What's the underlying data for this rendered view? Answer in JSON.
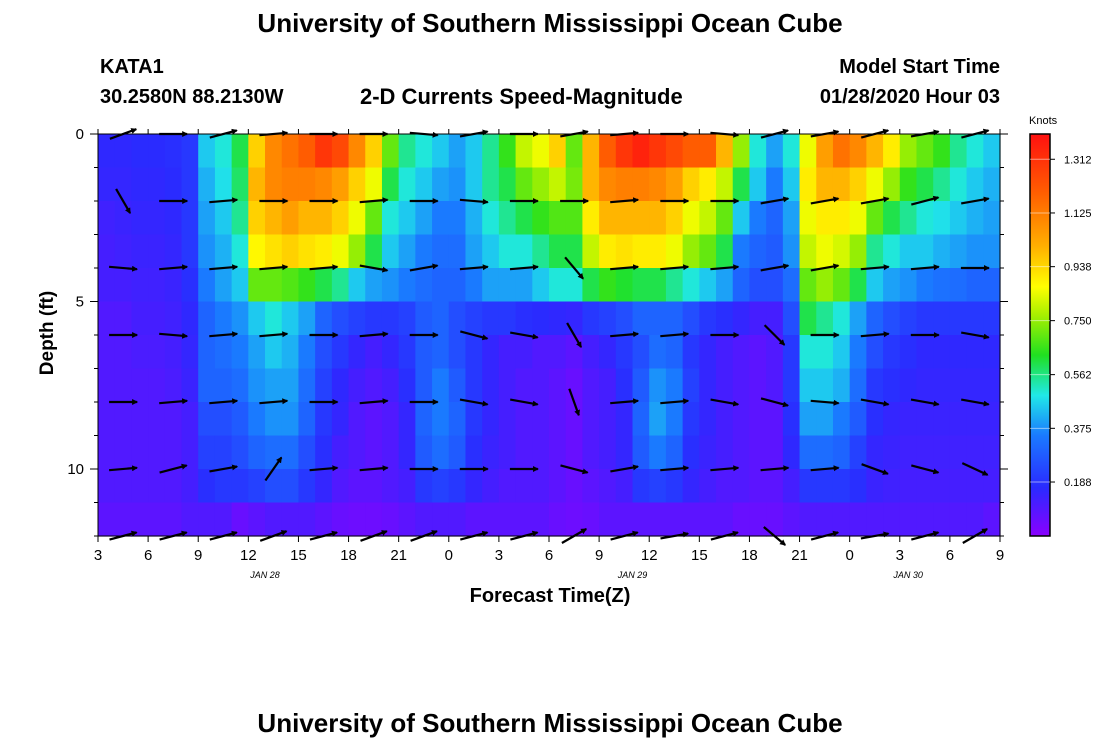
{
  "page": {
    "title_top": "University of Southern Mississippi Ocean Cube",
    "title_bottom": "University of Southern Mississippi Ocean Cube",
    "station": "KATA1",
    "location": "30.2580N 88.2130W",
    "subtitle": "2-D Currents Speed-Magnitude",
    "model_start_label": "Model Start Time",
    "model_start_value": "01/28/2020 Hour 03"
  },
  "chart_data": {
    "type": "heatmap",
    "title": "2-D Currents Speed-Magnitude",
    "xlabel": "Forecast Time(Z)",
    "ylabel": "Depth (ft)",
    "x_ticks": [
      "3",
      "6",
      "9",
      "12",
      "15",
      "18",
      "21",
      "0",
      "3",
      "6",
      "9",
      "12",
      "15",
      "18",
      "21",
      "0",
      "3",
      "6",
      "9"
    ],
    "date_labels": [
      {
        "label": "JAN 28",
        "hour_offset": 10
      },
      {
        "label": "JAN 29",
        "hour_offset": 32
      },
      {
        "label": "JAN 30",
        "hour_offset": 48.5
      }
    ],
    "x_range_hours": [
      0,
      54
    ],
    "y_ticks": [
      "0",
      "5",
      "10"
    ],
    "y_range_ft": [
      0,
      12
    ],
    "colorbar": {
      "unit": "Knots",
      "ticks": [
        "1.312",
        "1.125",
        "0.938",
        "0.750",
        "0.562",
        "0.375",
        "0.188"
      ],
      "range": [
        0,
        1.4
      ]
    },
    "column_hours": [
      0,
      1,
      2,
      3,
      4,
      5,
      6,
      7,
      8,
      9,
      10,
      11,
      12,
      13,
      14,
      15,
      16,
      17,
      18,
      19,
      20,
      21,
      22,
      23,
      24,
      25,
      26,
      27,
      28,
      29,
      30,
      31,
      32,
      33,
      34,
      35,
      36,
      37,
      38,
      39,
      40,
      41,
      42,
      43,
      44,
      45,
      46,
      47,
      48,
      49,
      50,
      51,
      52,
      53
    ],
    "depth_levels_ft": [
      0.5,
      1.5,
      2.5,
      3.5,
      4.5,
      5.5,
      6.5,
      7.5,
      8.5,
      9.5,
      10.5,
      11.5
    ],
    "speed_knots_by_depth": [
      [
        0.16,
        0.16,
        0.17,
        0.17,
        0.18,
        0.2,
        0.45,
        0.5,
        0.6,
        0.95,
        1.1,
        1.15,
        1.2,
        1.3,
        1.25,
        1.1,
        0.95,
        0.7,
        0.55,
        0.5,
        0.45,
        0.4,
        0.45,
        0.55,
        0.65,
        0.8,
        0.85,
        0.95,
        0.7,
        1.0,
        1.2,
        1.3,
        1.35,
        1.3,
        1.25,
        1.2,
        1.2,
        1.0,
        0.75,
        0.5,
        0.4,
        0.5,
        0.85,
        1.05,
        1.15,
        1.1,
        1.0,
        0.9,
        0.75,
        0.7,
        0.65,
        0.55,
        0.5,
        0.45
      ],
      [
        0.15,
        0.15,
        0.16,
        0.16,
        0.17,
        0.2,
        0.42,
        0.48,
        0.58,
        1.0,
        1.1,
        1.12,
        1.12,
        1.1,
        1.05,
        0.95,
        0.85,
        0.6,
        0.5,
        0.45,
        0.4,
        0.38,
        0.45,
        0.55,
        0.6,
        0.7,
        0.75,
        0.8,
        0.72,
        1.0,
        1.1,
        1.12,
        1.12,
        1.1,
        1.05,
        0.95,
        0.9,
        0.8,
        0.6,
        0.45,
        0.35,
        0.45,
        0.9,
        1.0,
        1.0,
        0.95,
        0.85,
        0.75,
        0.65,
        0.6,
        0.55,
        0.5,
        0.45,
        0.42
      ],
      [
        0.13,
        0.14,
        0.15,
        0.15,
        0.16,
        0.2,
        0.4,
        0.45,
        0.55,
        0.95,
        1.0,
        1.05,
        1.0,
        1.0,
        0.95,
        0.85,
        0.7,
        0.5,
        0.45,
        0.4,
        0.35,
        0.35,
        0.42,
        0.5,
        0.55,
        0.6,
        0.65,
        0.68,
        0.68,
        0.9,
        1.0,
        1.0,
        1.0,
        1.0,
        0.95,
        0.85,
        0.8,
        0.7,
        0.45,
        0.35,
        0.3,
        0.4,
        0.85,
        0.9,
        0.9,
        0.85,
        0.7,
        0.6,
        0.55,
        0.5,
        0.48,
        0.45,
        0.42,
        0.4
      ],
      [
        0.12,
        0.13,
        0.14,
        0.14,
        0.15,
        0.2,
        0.38,
        0.42,
        0.5,
        0.88,
        0.92,
        0.95,
        0.92,
        0.9,
        0.85,
        0.75,
        0.6,
        0.45,
        0.4,
        0.35,
        0.32,
        0.32,
        0.4,
        0.45,
        0.5,
        0.5,
        0.55,
        0.6,
        0.6,
        0.8,
        0.9,
        0.92,
        0.9,
        0.9,
        0.85,
        0.75,
        0.7,
        0.6,
        0.35,
        0.3,
        0.28,
        0.38,
        0.8,
        0.85,
        0.82,
        0.75,
        0.55,
        0.5,
        0.45,
        0.45,
        0.42,
        0.4,
        0.38,
        0.38
      ],
      [
        0.12,
        0.12,
        0.13,
        0.13,
        0.14,
        0.18,
        0.35,
        0.4,
        0.45,
        0.7,
        0.7,
        0.68,
        0.65,
        0.6,
        0.55,
        0.45,
        0.4,
        0.38,
        0.35,
        0.32,
        0.3,
        0.3,
        0.35,
        0.4,
        0.4,
        0.4,
        0.45,
        0.5,
        0.5,
        0.6,
        0.65,
        0.62,
        0.6,
        0.6,
        0.55,
        0.5,
        0.45,
        0.4,
        0.3,
        0.25,
        0.25,
        0.32,
        0.7,
        0.75,
        0.7,
        0.6,
        0.45,
        0.4,
        0.38,
        0.35,
        0.33,
        0.32,
        0.3,
        0.3
      ],
      [
        0.1,
        0.1,
        0.12,
        0.12,
        0.13,
        0.16,
        0.3,
        0.35,
        0.38,
        0.45,
        0.5,
        0.45,
        0.4,
        0.3,
        0.25,
        0.22,
        0.2,
        0.2,
        0.22,
        0.28,
        0.3,
        0.25,
        0.22,
        0.2,
        0.2,
        0.18,
        0.17,
        0.16,
        0.15,
        0.2,
        0.22,
        0.25,
        0.3,
        0.3,
        0.3,
        0.25,
        0.2,
        0.18,
        0.15,
        0.12,
        0.12,
        0.25,
        0.6,
        0.55,
        0.5,
        0.4,
        0.3,
        0.25,
        0.22,
        0.2,
        0.2,
        0.2,
        0.2,
        0.2
      ],
      [
        0.1,
        0.1,
        0.11,
        0.11,
        0.12,
        0.15,
        0.3,
        0.32,
        0.35,
        0.4,
        0.45,
        0.42,
        0.35,
        0.25,
        0.2,
        0.15,
        0.12,
        0.15,
        0.2,
        0.28,
        0.3,
        0.25,
        0.2,
        0.15,
        0.12,
        0.12,
        0.1,
        0.1,
        0.08,
        0.12,
        0.15,
        0.2,
        0.25,
        0.32,
        0.3,
        0.2,
        0.15,
        0.12,
        0.1,
        0.08,
        0.1,
        0.2,
        0.5,
        0.5,
        0.45,
        0.35,
        0.25,
        0.2,
        0.18,
        0.16,
        0.16,
        0.16,
        0.16,
        0.16
      ],
      [
        0.1,
        0.1,
        0.1,
        0.1,
        0.11,
        0.14,
        0.3,
        0.3,
        0.32,
        0.38,
        0.4,
        0.4,
        0.32,
        0.22,
        0.16,
        0.12,
        0.1,
        0.12,
        0.18,
        0.28,
        0.35,
        0.28,
        0.2,
        0.15,
        0.12,
        0.1,
        0.1,
        0.08,
        0.06,
        0.1,
        0.12,
        0.18,
        0.28,
        0.38,
        0.35,
        0.22,
        0.15,
        0.12,
        0.1,
        0.08,
        0.1,
        0.2,
        0.45,
        0.45,
        0.42,
        0.32,
        0.2,
        0.18,
        0.16,
        0.15,
        0.15,
        0.15,
        0.15,
        0.15
      ],
      [
        0.1,
        0.1,
        0.1,
        0.1,
        0.1,
        0.12,
        0.25,
        0.25,
        0.28,
        0.35,
        0.38,
        0.38,
        0.3,
        0.2,
        0.15,
        0.1,
        0.08,
        0.1,
        0.15,
        0.3,
        0.35,
        0.3,
        0.2,
        0.15,
        0.12,
        0.1,
        0.1,
        0.08,
        0.06,
        0.1,
        0.12,
        0.15,
        0.3,
        0.4,
        0.35,
        0.2,
        0.15,
        0.12,
        0.1,
        0.08,
        0.08,
        0.18,
        0.4,
        0.4,
        0.35,
        0.28,
        0.18,
        0.15,
        0.14,
        0.14,
        0.14,
        0.14,
        0.14,
        0.14
      ],
      [
        0.1,
        0.1,
        0.1,
        0.1,
        0.1,
        0.12,
        0.22,
        0.22,
        0.25,
        0.3,
        0.32,
        0.32,
        0.25,
        0.18,
        0.12,
        0.1,
        0.08,
        0.1,
        0.15,
        0.28,
        0.32,
        0.28,
        0.18,
        0.14,
        0.12,
        0.1,
        0.1,
        0.08,
        0.06,
        0.1,
        0.12,
        0.15,
        0.28,
        0.35,
        0.3,
        0.18,
        0.14,
        0.12,
        0.1,
        0.08,
        0.08,
        0.16,
        0.32,
        0.32,
        0.3,
        0.22,
        0.15,
        0.14,
        0.13,
        0.13,
        0.13,
        0.13,
        0.13,
        0.13
      ],
      [
        0.1,
        0.1,
        0.1,
        0.1,
        0.1,
        0.12,
        0.18,
        0.2,
        0.2,
        0.22,
        0.25,
        0.25,
        0.2,
        0.15,
        0.1,
        0.08,
        0.08,
        0.1,
        0.12,
        0.2,
        0.22,
        0.2,
        0.15,
        0.12,
        0.1,
        0.1,
        0.1,
        0.08,
        0.06,
        0.08,
        0.1,
        0.12,
        0.2,
        0.22,
        0.2,
        0.15,
        0.12,
        0.1,
        0.1,
        0.08,
        0.08,
        0.12,
        0.2,
        0.2,
        0.2,
        0.18,
        0.14,
        0.13,
        0.12,
        0.12,
        0.12,
        0.12,
        0.12,
        0.12
      ],
      [
        0.08,
        0.08,
        0.08,
        0.08,
        0.08,
        0.1,
        0.1,
        0.1,
        0.06,
        0.08,
        0.1,
        0.1,
        0.1,
        0.08,
        0.06,
        0.05,
        0.05,
        0.06,
        0.08,
        0.1,
        0.1,
        0.1,
        0.08,
        0.08,
        0.08,
        0.08,
        0.08,
        0.06,
        0.05,
        0.06,
        0.08,
        0.08,
        0.08,
        0.08,
        0.08,
        0.08,
        0.08,
        0.08,
        0.06,
        0.06,
        0.06,
        0.08,
        0.1,
        0.1,
        0.1,
        0.1,
        0.1,
        0.1,
        0.1,
        0.1,
        0.1,
        0.1,
        0.1,
        0.08
      ]
    ],
    "vector_depths_ft": [
      0,
      2,
      4,
      6,
      8,
      10,
      12
    ],
    "vector_hours": [
      1.5,
      4.5,
      7.5,
      10.5,
      13.5,
      16.5,
      19.5,
      22.5,
      25.5,
      28.5,
      31.5,
      34.5,
      37.5,
      40.5,
      43.5,
      46.5,
      49.5,
      52.5
    ],
    "vector_angles_deg_by_depth": [
      [
        20,
        0,
        15,
        5,
        0,
        0,
        -5,
        10,
        0,
        10,
        5,
        0,
        -5,
        15,
        10,
        15,
        10,
        15
      ],
      [
        -60,
        0,
        5,
        0,
        0,
        5,
        0,
        -5,
        0,
        0,
        5,
        0,
        0,
        10,
        10,
        10,
        15,
        10
      ],
      [
        -5,
        5,
        5,
        5,
        5,
        -10,
        10,
        5,
        5,
        -50,
        5,
        5,
        5,
        10,
        10,
        5,
        5,
        0
      ],
      [
        0,
        -5,
        5,
        5,
        0,
        5,
        0,
        -15,
        -10,
        -60,
        5,
        5,
        0,
        -45,
        0,
        5,
        0,
        -10
      ],
      [
        0,
        5,
        5,
        5,
        0,
        5,
        0,
        -10,
        -10,
        -70,
        5,
        5,
        -10,
        -15,
        -5,
        -10,
        -10,
        -10
      ],
      [
        5,
        15,
        10,
        55,
        5,
        5,
        0,
        0,
        0,
        -15,
        10,
        5,
        5,
        5,
        5,
        -20,
        -15,
        -25
      ],
      [
        15,
        15,
        15,
        20,
        15,
        20,
        20,
        15,
        15,
        30,
        15,
        10,
        15,
        -40,
        15,
        10,
        15,
        30
      ]
    ]
  }
}
